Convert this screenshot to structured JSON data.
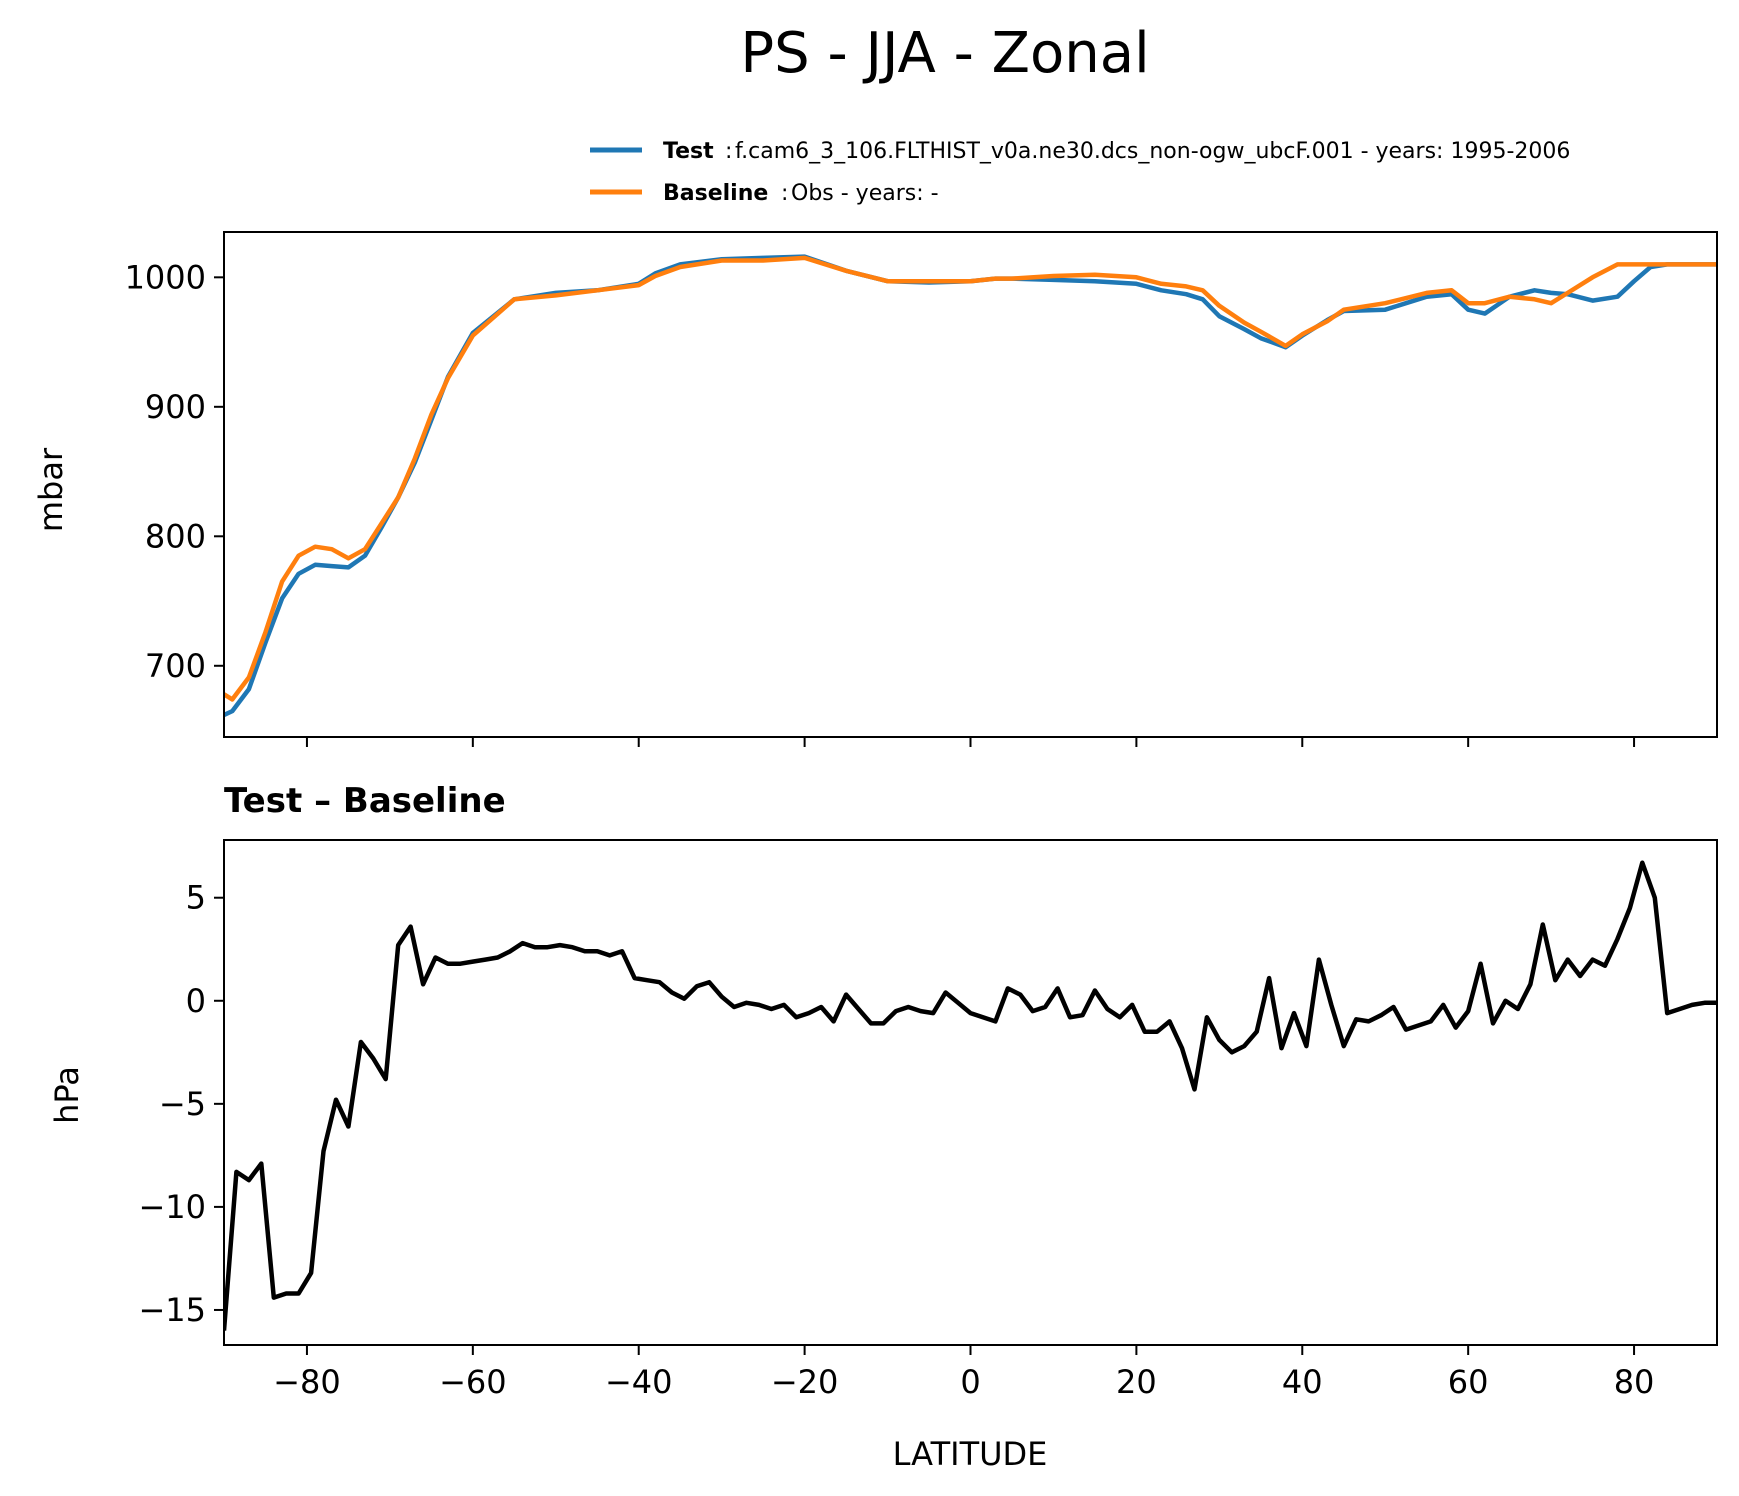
{
  "figure": {
    "title": "PS - JJA - Zonal"
  },
  "colors": {
    "test": "#1f77b4",
    "baseline": "#ff7f0e",
    "difference": "#000000"
  },
  "legend": {
    "placement": "top-right",
    "entries": [
      {
        "key": "Test",
        "value": "f.cam6_3_106.FLTHIST_v0a.ne30.dcs_non-ogw_ubcF.001 - years: 1995-2006"
      },
      {
        "key": "Baseline",
        "value": "Obs - years: -"
      }
    ]
  },
  "chart_data": [
    {
      "type": "line",
      "title": "",
      "xlabel": "",
      "ylabel": "mbar",
      "xlim": [
        -90,
        90
      ],
      "ylim": [
        645,
        1035
      ],
      "xticks": [
        -80,
        -60,
        -40,
        -20,
        0,
        20,
        40,
        60,
        80
      ],
      "yticks": [
        700,
        800,
        900,
        1000
      ],
      "ytick_labels": [
        "700",
        "800",
        "900",
        "1000"
      ],
      "grid": false,
      "series": [
        {
          "name": "Test",
          "x": [
            -90,
            -89,
            -87,
            -85,
            -83,
            -81,
            -79,
            -77,
            -75,
            -73,
            -71,
            -69,
            -67,
            -65,
            -63,
            -60,
            -55,
            -50,
            -45,
            -40,
            -38,
            -35,
            -30,
            -25,
            -20,
            -15,
            -10,
            -5,
            0,
            3,
            5,
            10,
            15,
            20,
            23,
            26,
            28,
            30,
            33,
            35,
            38,
            40,
            43,
            45,
            50,
            55,
            58,
            60,
            62,
            65,
            68,
            70,
            72,
            75,
            78,
            80,
            82,
            84,
            86,
            88,
            90
          ],
          "values": [
            662,
            665,
            682,
            718,
            752,
            771,
            778,
            777,
            776,
            785,
            807,
            830,
            857,
            890,
            923,
            957,
            983,
            988,
            990,
            995,
            1003,
            1010,
            1014,
            1015,
            1016,
            1005,
            997,
            996,
            997,
            999,
            999,
            998,
            997,
            995,
            990,
            987,
            983,
            970,
            960,
            953,
            946,
            955,
            967,
            974,
            975,
            985,
            987,
            975,
            972,
            985,
            990,
            988,
            987,
            982,
            985,
            997,
            1008,
            1010,
            1010,
            1010,
            1010
          ]
        },
        {
          "name": "Baseline",
          "x": [
            -90,
            -89,
            -87,
            -85,
            -83,
            -81,
            -79,
            -77,
            -75,
            -73,
            -71,
            -69,
            -67,
            -65,
            -63,
            -60,
            -55,
            -50,
            -45,
            -40,
            -38,
            -35,
            -30,
            -25,
            -20,
            -15,
            -10,
            -5,
            0,
            3,
            5,
            10,
            15,
            20,
            23,
            26,
            28,
            30,
            33,
            35,
            38,
            40,
            43,
            45,
            50,
            55,
            58,
            60,
            62,
            65,
            68,
            70,
            72,
            75,
            78,
            80,
            82,
            84,
            86,
            88,
            90
          ],
          "values": [
            678,
            674,
            691,
            726,
            765,
            785,
            792,
            790,
            783,
            790,
            810,
            830,
            860,
            894,
            922,
            955,
            983,
            986,
            990,
            994,
            1001,
            1008,
            1013,
            1013,
            1015,
            1005,
            997,
            997,
            997,
            999,
            999,
            1001,
            1002,
            1000,
            995,
            993,
            990,
            978,
            965,
            958,
            947,
            956,
            966,
            975,
            980,
            988,
            990,
            980,
            980,
            985,
            983,
            980,
            988,
            1000,
            1010,
            1010,
            1010,
            1010,
            1010,
            1010,
            1010
          ]
        }
      ]
    },
    {
      "type": "line",
      "title": "Test – Baseline",
      "xlabel": "LATITUDE",
      "ylabel": "hPa",
      "xlim": [
        -90,
        90
      ],
      "ylim": [
        -16.7,
        7.8
      ],
      "xticks": [
        -80,
        -60,
        -40,
        -20,
        0,
        20,
        40,
        60,
        80
      ],
      "xtick_labels": [
        "−80",
        "−60",
        "−40",
        "−20",
        "0",
        "20",
        "40",
        "60",
        "80"
      ],
      "yticks": [
        -15,
        -10,
        -5,
        0,
        5
      ],
      "ytick_labels": [
        "−15",
        "−10",
        "−5",
        "0",
        "5"
      ],
      "grid": false,
      "series": [
        {
          "name": "",
          "x": [
            -90,
            -88.5,
            -87,
            -85.5,
            -84,
            -82.5,
            -81,
            -79.5,
            -78,
            -76.5,
            -75,
            -73.5,
            -72,
            -70.5,
            -69,
            -67.5,
            -66,
            -64.5,
            -63,
            -61.5,
            -60,
            -58.5,
            -57,
            -55.5,
            -54,
            -52.5,
            -51,
            -49.5,
            -48,
            -46.5,
            -45,
            -43.5,
            -42,
            -40.5,
            -39,
            -37.5,
            -36,
            -34.5,
            -33,
            -31.5,
            -30,
            -28.5,
            -27,
            -25.5,
            -24,
            -22.5,
            -21,
            -19.5,
            -18,
            -16.5,
            -15,
            -13.5,
            -12,
            -10.5,
            -9,
            -7.5,
            -6,
            -4.5,
            -3,
            -1.5,
            0,
            1.5,
            3,
            4.5,
            6,
            7.5,
            9,
            10.5,
            12,
            13.5,
            15,
            16.5,
            18,
            19.5,
            21,
            22.5,
            24,
            25.5,
            27,
            28.5,
            30,
            31.5,
            33,
            34.5,
            36,
            37.5,
            39,
            40.5,
            42,
            43.5,
            45,
            46.5,
            48,
            49.5,
            51,
            52.5,
            54,
            55.5,
            57,
            58.5,
            60,
            61.5,
            63,
            64.5,
            66,
            67.5,
            69,
            70.5,
            72,
            73.5,
            75,
            76.5,
            78,
            79.5,
            81,
            82.5,
            84,
            85.5,
            87,
            88.5,
            90
          ],
          "values": [
            -16,
            -8.3,
            -8.7,
            -7.9,
            -14.4,
            -14.2,
            -14.2,
            -13.2,
            -7.3,
            -4.8,
            -6.1,
            -2.0,
            -2.8,
            -3.8,
            2.7,
            3.6,
            0.8,
            2.1,
            1.8,
            1.8,
            1.9,
            2.0,
            2.1,
            2.4,
            2.8,
            2.6,
            2.6,
            2.7,
            2.6,
            2.4,
            2.4,
            2.2,
            2.4,
            1.1,
            1.0,
            0.9,
            0.4,
            0.1,
            0.7,
            0.9,
            0.2,
            -0.3,
            -0.1,
            -0.2,
            -0.4,
            -0.2,
            -0.8,
            -0.6,
            -0.3,
            -1.0,
            0.3,
            -0.4,
            -1.1,
            -1.1,
            -0.5,
            -0.3,
            -0.5,
            -0.6,
            0.4,
            -0.1,
            -0.6,
            -0.8,
            -1.0,
            0.6,
            0.3,
            -0.5,
            -0.3,
            0.6,
            -0.8,
            -0.7,
            0.5,
            -0.4,
            -0.8,
            -0.2,
            -1.5,
            -1.5,
            -1.0,
            -2.3,
            -4.3,
            -0.8,
            -1.9,
            -2.5,
            -2.2,
            -1.5,
            1.1,
            -2.3,
            -0.6,
            -2.2,
            2.0,
            -0.2,
            -2.2,
            -0.9,
            -1.0,
            -0.7,
            -0.3,
            -1.4,
            -1.2,
            -1.0,
            -0.2,
            -1.3,
            -0.5,
            1.8,
            -1.1,
            0.0,
            -0.4,
            0.8,
            3.7,
            1.0,
            2.0,
            1.2,
            2.0,
            1.7,
            3.0,
            4.5,
            6.7,
            5.0,
            -0.6,
            -0.4,
            -0.2,
            -0.1,
            -0.1
          ]
        }
      ]
    }
  ]
}
